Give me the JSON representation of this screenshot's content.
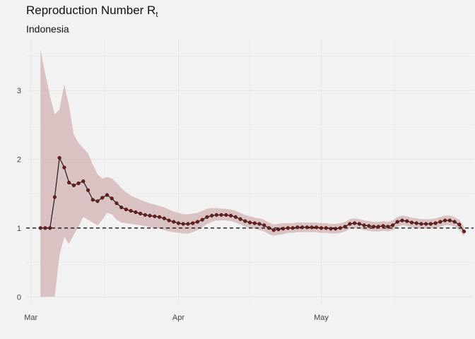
{
  "chart_data": {
    "type": "line",
    "title": "Reproduction Number R",
    "title_subscript": "t",
    "subtitle": "Indonesia",
    "xlabel": "",
    "ylabel": "",
    "x_ticks": [
      "Mar",
      "Apr",
      "May"
    ],
    "x_tick_days": [
      1,
      32,
      62
    ],
    "y_ticks": [
      0,
      1,
      2,
      3
    ],
    "ylim": [
      -0.1,
      3.75
    ],
    "xlim": [
      0,
      94
    ],
    "reference_line": 1,
    "grid": true,
    "colors": {
      "line": "#1a1a1a",
      "point": "#7b1a1a",
      "ribbon": "#c99a9a",
      "reference": "#000000",
      "grid": "#e6e6e6"
    },
    "series": [
      {
        "start_day": 3,
        "values": [
          1.0,
          1.0,
          1.0,
          1.45,
          2.02,
          1.88,
          1.66,
          1.62,
          1.65,
          1.68,
          1.55,
          1.41,
          1.39,
          1.44,
          1.48,
          1.43,
          1.36,
          1.3,
          1.27,
          1.25,
          1.23,
          1.21,
          1.19,
          1.18,
          1.17,
          1.16,
          1.14,
          1.11,
          1.09,
          1.07,
          1.06,
          1.06,
          1.07,
          1.09,
          1.12,
          1.16,
          1.18,
          1.19,
          1.19,
          1.19,
          1.18,
          1.16,
          1.13,
          1.1,
          1.08,
          1.07,
          1.06,
          1.04,
          1.0,
          0.97,
          0.98,
          0.99,
          1.0,
          1.0,
          1.01,
          1.01,
          1.01,
          1.01,
          1.01,
          1.0,
          1.0,
          0.99,
          0.99,
          1.0,
          1.02,
          1.06,
          1.07,
          1.06,
          1.04,
          1.03,
          1.02,
          1.02,
          1.03,
          1.02,
          1.04,
          1.09,
          1.11,
          1.1,
          1.08,
          1.07,
          1.06,
          1.06,
          1.06,
          1.07,
          1.09,
          1.11,
          1.11,
          1.09,
          1.05,
          0.95
        ],
        "lower": [
          0,
          0,
          0,
          0,
          0.6,
          0.87,
          0.77,
          0.9,
          1.02,
          1.16,
          1.12,
          1.08,
          1.04,
          1.12,
          1.22,
          1.2,
          1.12,
          1.08,
          1.07,
          1.06,
          1.05,
          1.04,
          1.03,
          1.01,
          1.0,
          0.99,
          0.97,
          0.95,
          0.94,
          0.93,
          0.92,
          0.92,
          0.94,
          0.97,
          1.01,
          1.06,
          1.09,
          1.11,
          1.11,
          1.11,
          1.1,
          1.08,
          1.05,
          1.02,
          1.0,
          0.99,
          0.97,
          0.95,
          0.91,
          0.89,
          0.9,
          0.91,
          0.93,
          0.93,
          0.94,
          0.94,
          0.94,
          0.94,
          0.94,
          0.93,
          0.93,
          0.92,
          0.92,
          0.93,
          0.95,
          0.99,
          1.0,
          0.99,
          0.97,
          0.96,
          0.95,
          0.95,
          0.96,
          0.95,
          0.97,
          1.02,
          1.04,
          1.03,
          1.01,
          1.0,
          0.99,
          0.99,
          0.99,
          1.0,
          1.02,
          1.04,
          1.04,
          1.02,
          0.97,
          0.88
        ],
        "upper": [
          3.6,
          3.25,
          2.92,
          2.65,
          2.72,
          3.09,
          2.78,
          2.36,
          2.24,
          2.16,
          2.09,
          1.92,
          1.78,
          1.72,
          1.74,
          1.72,
          1.66,
          1.58,
          1.52,
          1.47,
          1.44,
          1.41,
          1.38,
          1.36,
          1.34,
          1.32,
          1.3,
          1.27,
          1.24,
          1.22,
          1.2,
          1.2,
          1.21,
          1.22,
          1.25,
          1.28,
          1.29,
          1.29,
          1.28,
          1.28,
          1.27,
          1.25,
          1.22,
          1.19,
          1.17,
          1.15,
          1.14,
          1.12,
          1.08,
          1.05,
          1.06,
          1.07,
          1.07,
          1.07,
          1.08,
          1.08,
          1.08,
          1.08,
          1.08,
          1.07,
          1.07,
          1.06,
          1.06,
          1.07,
          1.09,
          1.13,
          1.14,
          1.13,
          1.11,
          1.1,
          1.09,
          1.09,
          1.1,
          1.09,
          1.11,
          1.16,
          1.18,
          1.17,
          1.15,
          1.14,
          1.13,
          1.13,
          1.13,
          1.14,
          1.16,
          1.18,
          1.18,
          1.16,
          1.12,
          1.02
        ]
      }
    ]
  }
}
